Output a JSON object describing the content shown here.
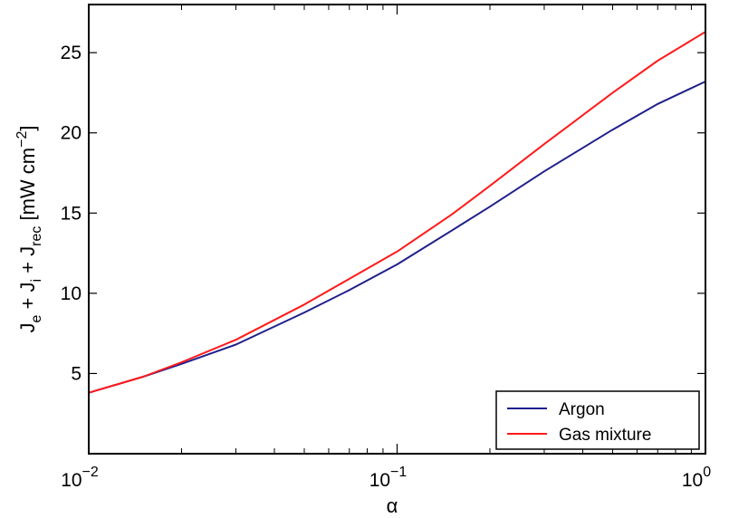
{
  "chart_data": {
    "type": "line",
    "xscale": "log",
    "xlim": [
      0.01,
      1
    ],
    "ylim": [
      0,
      28
    ],
    "x_ticks": [
      {
        "value": 0.01,
        "base": "10",
        "exp": "−2"
      },
      {
        "value": 0.1,
        "base": "10",
        "exp": "−1"
      },
      {
        "value": 1,
        "base": "10",
        "exp": "0"
      }
    ],
    "y_ticks": [
      5,
      10,
      15,
      20,
      25
    ],
    "xlabel": "α",
    "ylabel": {
      "prefix": "J",
      "sub_e": "e",
      "plus1": " + J",
      "sub_i": "i",
      "plus2": " + J",
      "sub_rec": "rec",
      "unit": " [mW cm",
      "unit_exp": "−2",
      "unit_end": "]"
    },
    "legend_position": "bottom-right",
    "series": [
      {
        "name": "Argon",
        "color": "#1f1f8c",
        "x": [
          0.01,
          0.015,
          0.02,
          0.03,
          0.05,
          0.07,
          0.1,
          0.15,
          0.2,
          0.3,
          0.5,
          0.7,
          1.0
        ],
        "y": [
          3.8,
          4.8,
          5.6,
          6.8,
          8.8,
          10.2,
          11.8,
          13.9,
          15.4,
          17.6,
          20.2,
          21.8,
          23.2
        ]
      },
      {
        "name": "Gas mixture",
        "color": "#ff1a1a",
        "x": [
          0.01,
          0.015,
          0.02,
          0.03,
          0.05,
          0.07,
          0.1,
          0.15,
          0.2,
          0.3,
          0.5,
          0.7,
          1.0
        ],
        "y": [
          3.8,
          4.8,
          5.7,
          7.1,
          9.3,
          10.9,
          12.6,
          14.9,
          16.7,
          19.3,
          22.5,
          24.5,
          26.3
        ]
      }
    ]
  }
}
